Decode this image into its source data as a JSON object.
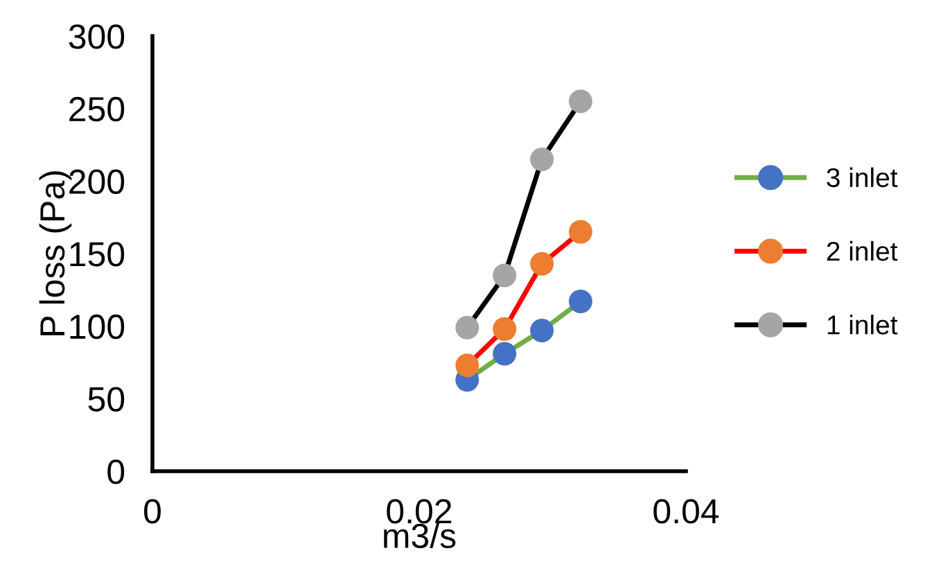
{
  "chart_data": {
    "type": "line",
    "xlabel": "m3/s",
    "ylabel": "P loss (Pa)",
    "x": [
      0.0236,
      0.0264,
      0.0292,
      0.0321
    ],
    "series": [
      {
        "name": "3 inlet",
        "color": "#70ad47",
        "colors": [
          "#4472c4",
          "#4472c4",
          "#4472c4",
          "#4472c4"
        ],
        "values": [
          63,
          81,
          97,
          117
        ]
      },
      {
        "name": "2 inlet",
        "color": "#ff0000",
        "colors": [
          "#ed7d31",
          "#ed7d31",
          "#ed7d31",
          "#ed7d31"
        ],
        "values": [
          73,
          98,
          143,
          165
        ]
      },
      {
        "name": "1 inlet",
        "color": "#000000",
        "colors": [
          "#a5a5a5",
          "#a5a5a5",
          "#a5a5a5",
          "#a5a5a5"
        ],
        "values": [
          99,
          135,
          215,
          255
        ]
      }
    ],
    "xlim": [
      0,
      0.04
    ],
    "xticks": [
      0,
      0.02,
      0.04
    ],
    "ylim": [
      0,
      300
    ],
    "yticks": [
      0,
      50,
      100,
      150,
      200,
      250,
      300
    ],
    "grid": false,
    "legend": "right",
    "marker": "circle",
    "line_style": "solid"
  }
}
